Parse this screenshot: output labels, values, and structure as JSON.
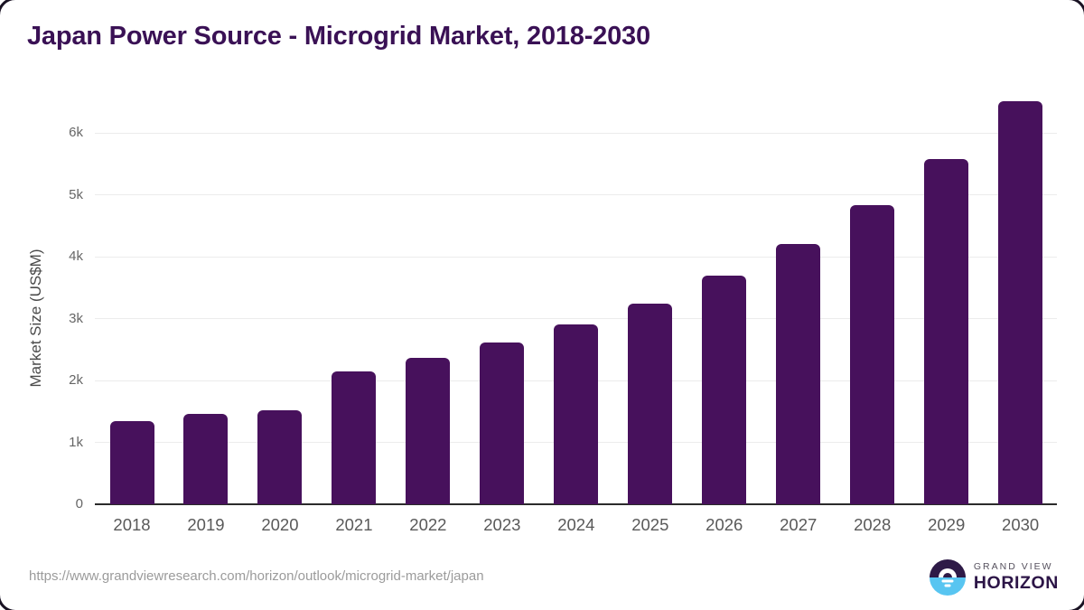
{
  "title": "Japan Power Source - Microgrid Market, 2018-2030",
  "source_url": "https://www.grandviewresearch.com/horizon/outlook/microgrid-market/japan",
  "logo": {
    "line1": "GRAND VIEW",
    "line2": "HORIZON",
    "icon": "sunrise-horizon-icon"
  },
  "colors": {
    "bar": "#47115c",
    "title": "#3a1155",
    "gridline": "#ececec",
    "axis_line": "#2b2b2b",
    "tick_text": "#666666",
    "x_tick_text": "#595959",
    "url_text": "#9b9b9b",
    "logo_purple": "#2e1a47",
    "logo_blue": "#58c5f1"
  },
  "chart_data": {
    "type": "bar",
    "title": "Japan Power Source - Microgrid Market, 2018-2030",
    "categories": [
      "2018",
      "2019",
      "2020",
      "2021",
      "2022",
      "2023",
      "2024",
      "2025",
      "2026",
      "2027",
      "2028",
      "2029",
      "2030"
    ],
    "values": [
      1350,
      1460,
      1520,
      2150,
      2370,
      2610,
      2900,
      3240,
      3690,
      4200,
      4830,
      5570,
      6510
    ],
    "xlabel": "",
    "ylabel": "Market Size (US$M)",
    "yticks": [
      0,
      1000,
      2000,
      3000,
      4000,
      5000,
      6000
    ],
    "ytick_labels": [
      "0",
      "1k",
      "2k",
      "3k",
      "4k",
      "5k",
      "6k"
    ],
    "ylim": [
      0,
      6600
    ],
    "grid": true,
    "legend": false,
    "bar_color": "#47115c"
  }
}
